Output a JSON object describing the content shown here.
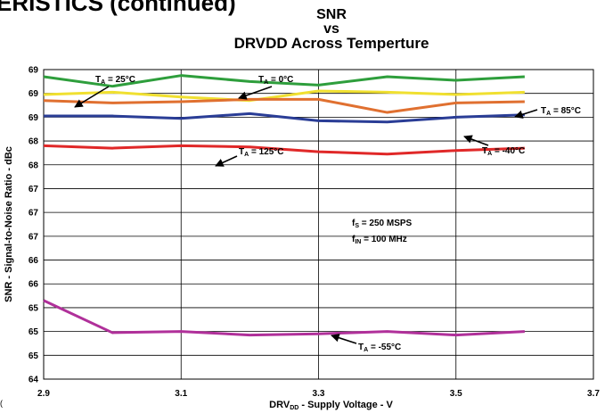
{
  "page": {
    "header_fragment": "ERISTICS (continued)",
    "corner_mark": "("
  },
  "chart_data": {
    "type": "line",
    "title_lines": [
      "SNR",
      "vs",
      "DRVDD Across Temperture"
    ],
    "xlabel_main": "DRV",
    "xlabel_sub": "DD",
    "xlabel_rest": " - Supply Voltage - V",
    "ylabel": "SNR - Signal-to-Noise Ratio - dBc",
    "xlim": [
      2.9,
      3.7
    ],
    "ylim_steps": 13,
    "x_ticks": [
      {
        "value": 2.9,
        "label": "2.9"
      },
      {
        "value": 3.1,
        "label": "3.1"
      },
      {
        "value": 3.3,
        "label": "3.3"
      },
      {
        "value": 3.5,
        "label": "3.5"
      },
      {
        "value": 3.7,
        "label": "3.7"
      }
    ],
    "y_tick_labels": [
      "69",
      "69",
      "69",
      "68",
      "68",
      "67",
      "67",
      "67",
      "66",
      "66",
      "65",
      "65",
      "65",
      "64"
    ],
    "grid": true,
    "x": [
      2.9,
      3.0,
      3.1,
      3.2,
      3.3,
      3.4,
      3.5,
      3.6
    ],
    "series": [
      {
        "name": "T_A = 0°C",
        "color": "#2e9e3c",
        "values": [
          12.7,
          12.3,
          12.75,
          12.5,
          12.35,
          12.7,
          12.55,
          12.7
        ]
      },
      {
        "name": "T_A = 25°C",
        "color": "#f0e030",
        "values": [
          11.95,
          12.05,
          11.85,
          11.7,
          12.1,
          12.05,
          11.95,
          12.05
        ]
      },
      {
        "name": "T_A = 85°C",
        "color": "#e07030",
        "values": [
          11.7,
          11.6,
          11.65,
          11.75,
          11.75,
          11.2,
          11.6,
          11.65
        ]
      },
      {
        "name": "T_A = -40°C",
        "color": "#2a3d96",
        "values": [
          11.05,
          11.05,
          10.95,
          11.15,
          10.85,
          10.8,
          11.0,
          11.1
        ]
      },
      {
        "name": "T_A = 125°C",
        "color": "#e02828",
        "values": [
          9.8,
          9.7,
          9.8,
          9.75,
          9.55,
          9.45,
          9.6,
          9.7
        ]
      },
      {
        "name": "T_A = -55°C",
        "color": "#b0309a",
        "values": [
          3.3,
          1.95,
          2.0,
          1.85,
          1.9,
          2.0,
          1.85,
          2.0
        ]
      }
    ],
    "annotations": [
      {
        "main": "T",
        "sub": "A",
        "rest": " = 25°C",
        "anchor": "25"
      },
      {
        "main": "T",
        "sub": "A",
        "rest": " = 0°C",
        "anchor": "0"
      },
      {
        "main": "T",
        "sub": "A",
        "rest": " = 85°C",
        "anchor": "85"
      },
      {
        "main": "T",
        "sub": "A",
        "rest": " = -40°C",
        "anchor": "-40"
      },
      {
        "main": "T",
        "sub": "A",
        "rest": " = 125°C",
        "anchor": "125"
      },
      {
        "main": "T",
        "sub": "A",
        "rest": " = -55°C",
        "anchor": "-55"
      },
      {
        "main": "f",
        "sub": "S",
        "rest": " = 250 MSPS",
        "anchor": "fs"
      },
      {
        "main": "f",
        "sub": "IN",
        "rest": " = 100 MHz",
        "anchor": "fin"
      }
    ]
  }
}
